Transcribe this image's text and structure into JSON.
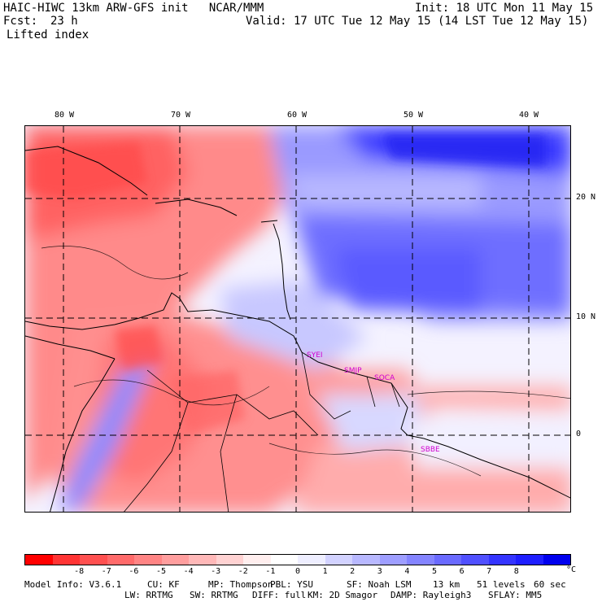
{
  "header": {
    "model_line": "HAIC-HIWC 13km ARW-GFS init   NCAR/MMM",
    "init_line": "Init: 18 UTC Mon 11 May 15",
    "fcst_label": "Fcst:",
    "fcst_value": "23 h",
    "valid_line": "Valid: 17 UTC Tue 12 May 15 (14 LST Tue 12 May 15)",
    "field_name": "Lifted index"
  },
  "map": {
    "lon_labels": [
      "80 W",
      "70 W",
      "60 W",
      "50 W",
      "40 W"
    ],
    "lat_labels": [
      "20 N",
      "10 N",
      "0"
    ],
    "stations": [
      "SYEI",
      "SMJP",
      "SOCA",
      "SBBE"
    ]
  },
  "colorbar": {
    "colors": [
      "#ff0000",
      "#ff3434",
      "#ff5050",
      "#ff6a6a",
      "#ff8484",
      "#ff9e9e",
      "#ffb8b8",
      "#ffd2d2",
      "#ffeeee",
      "#ffffff",
      "#eeeeff",
      "#d2d2ff",
      "#b8b8ff",
      "#9e9eff",
      "#8484ff",
      "#6a6aff",
      "#5050ff",
      "#3434ff",
      "#1e1eff",
      "#0000ee"
    ],
    "ticks": [
      "-8",
      "-7",
      "-6",
      "-5",
      "-4",
      "-3",
      "-2",
      "-1",
      "0",
      "1",
      "2",
      "3",
      "4",
      "5",
      "6",
      "7",
      "8"
    ],
    "unit": "°C"
  },
  "footer": {
    "line1": {
      "model_info": "Model Info: V3.6.1",
      "cu": "CU: KF",
      "mp": "MP: Thompson",
      "pbl": "PBL: YSU",
      "sf": "SF: Noah LSM",
      "res": "13 km",
      "levels": "51 levels",
      "dt": "60 sec"
    },
    "line2": {
      "lw": "LW: RRTMG",
      "sw": "SW: RRTMG",
      "diff": "DIFF: full",
      "km": "KM: 2D Smagor",
      "damp": "DAMP: Rayleigh3",
      "sflay": "SFLAY: MM5"
    }
  }
}
